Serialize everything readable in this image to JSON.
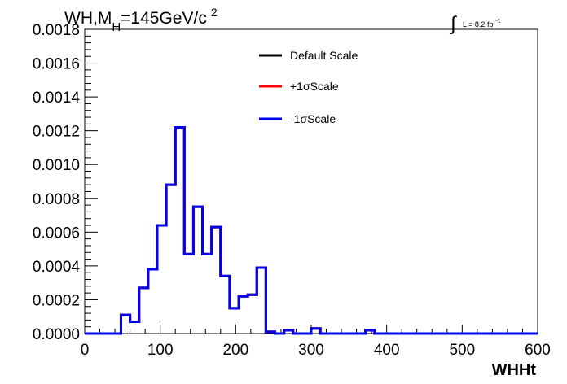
{
  "chart_data": {
    "type": "line",
    "title": {
      "main": "WH,M",
      "subscript": "H",
      "rest": "=145GeV/c",
      "superscript": "2"
    },
    "lumi": {
      "symbol": "∫",
      "text": "L = 8.2 fb",
      "superscript": "-1"
    },
    "xlabel": "WHHt",
    "ylabel": "",
    "xlim": [
      0,
      600
    ],
    "ylim": [
      0,
      0.0018
    ],
    "xticks": [
      0,
      100,
      200,
      300,
      400,
      500,
      600
    ],
    "yticks": [
      "0.0000",
      "0.0002",
      "0.0004",
      "0.0006",
      "0.0008",
      "0.0010",
      "0.0012",
      "0.0014",
      "0.0016",
      "0.0018"
    ],
    "grid": false,
    "legend_position": "top-center",
    "bin_edges": [
      0,
      12,
      24,
      36,
      48,
      60,
      72,
      84,
      96,
      108,
      120,
      132,
      144,
      156,
      168,
      180,
      192,
      204,
      216,
      228,
      240,
      252,
      264,
      276,
      288,
      300,
      312,
      324,
      336,
      348,
      360,
      372,
      384,
      396,
      408,
      420,
      432,
      444,
      456,
      468,
      480,
      492,
      504,
      516,
      528,
      540,
      552,
      564,
      576,
      588,
      600
    ],
    "series": [
      {
        "name": "Default Scale",
        "color": "#000000",
        "values": [
          0,
          0,
          0,
          0,
          0.00011,
          7e-05,
          0.00027,
          0.00038,
          0.00064,
          0.00088,
          0.00122,
          0.00047,
          0.00075,
          0.00047,
          0.00063,
          0.00034,
          0.00015,
          0.00022,
          0.00023,
          0.00039,
          1e-05,
          0,
          2e-05,
          0,
          0,
          3e-05,
          0,
          0,
          0,
          0,
          0,
          2e-05,
          0,
          0,
          0,
          0,
          0,
          0,
          0,
          0,
          0,
          0,
          0,
          0,
          0,
          0,
          0,
          0,
          0,
          0
        ]
      },
      {
        "name": "+1σScale",
        "color": "#ff0000",
        "values": [
          0,
          0,
          0,
          0,
          0.00011,
          7e-05,
          0.00027,
          0.00038,
          0.00064,
          0.00088,
          0.00122,
          0.00047,
          0.00075,
          0.00047,
          0.00063,
          0.00034,
          0.00015,
          0.00022,
          0.00023,
          0.00039,
          1e-05,
          0,
          2e-05,
          0,
          0,
          3e-05,
          0,
          0,
          0,
          0,
          0,
          2e-05,
          0,
          0,
          0,
          0,
          0,
          0,
          0,
          0,
          0,
          0,
          0,
          0,
          0,
          0,
          0,
          0,
          0,
          0
        ]
      },
      {
        "name": "-1σScale",
        "color": "#0000ee",
        "values": [
          0,
          0,
          0,
          0,
          0.00011,
          7e-05,
          0.00027,
          0.00038,
          0.00064,
          0.00088,
          0.00122,
          0.00047,
          0.00075,
          0.00047,
          0.00063,
          0.00034,
          0.00015,
          0.00022,
          0.00023,
          0.00039,
          1e-05,
          0,
          2e-05,
          0,
          0,
          3e-05,
          0,
          0,
          0,
          0,
          0,
          2e-05,
          0,
          0,
          0,
          0,
          0,
          0,
          0,
          0,
          0,
          0,
          0,
          0,
          0,
          0,
          0,
          0,
          0,
          0
        ]
      }
    ]
  }
}
